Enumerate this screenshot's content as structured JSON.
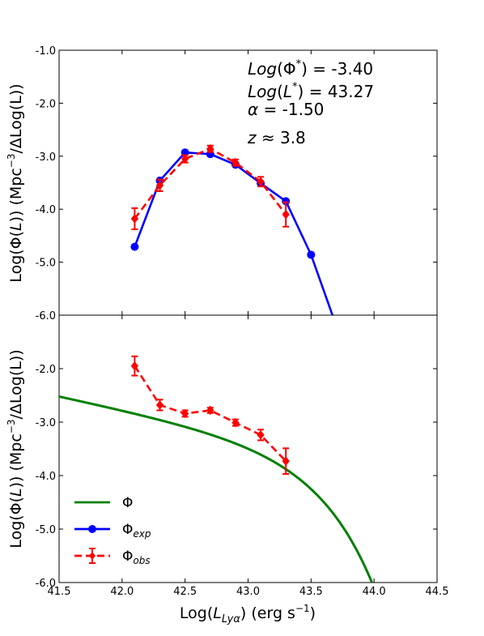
{
  "chart_data": [
    {
      "type": "line",
      "panel": "top",
      "xlim": [
        41.5,
        44.5
      ],
      "ylim": [
        -6.0,
        -1.0
      ],
      "xticks": [],
      "yticks": [
        "-1.0",
        "-2.0",
        "-3.0",
        "-4.0",
        "-5.0",
        "-6.0"
      ],
      "ylabel": "Log(Φ(L)) (Mpc⁻³/ΔLog(L))",
      "annotations": {
        "line1": "Log(Φ*) = -3.40",
        "line2": "Log(L*) = 43.27",
        "line3": "α = -1.50",
        "line4": "z ≈ 3.8"
      },
      "series": [
        {
          "name": "Φexp",
          "color": "#0000ff",
          "style": "solid-with-circles",
          "x": [
            42.1,
            42.3,
            42.5,
            42.7,
            42.9,
            43.1,
            43.3,
            43.5,
            43.67
          ],
          "y": [
            -4.71,
            -3.46,
            -2.93,
            -2.96,
            -3.16,
            -3.51,
            -3.85,
            -4.86,
            -6.0
          ],
          "markers": [
            true,
            true,
            true,
            true,
            true,
            true,
            true,
            true,
            false
          ]
        },
        {
          "name": "Φobs",
          "color": "#ff0000",
          "style": "dashed-with-diamonds",
          "x": [
            42.1,
            42.3,
            42.5,
            42.7,
            42.9,
            43.1,
            43.3
          ],
          "y": [
            -4.18,
            -3.55,
            -3.05,
            -2.86,
            -3.12,
            -3.48,
            -4.1
          ],
          "err": [
            0.2,
            0.11,
            0.07,
            0.06,
            0.06,
            0.09,
            0.23
          ]
        }
      ]
    },
    {
      "type": "line",
      "panel": "bottom",
      "xlim": [
        41.5,
        44.5
      ],
      "ylim": [
        -6.0,
        -1.0
      ],
      "xticks": [
        "41.5",
        "42.0",
        "42.5",
        "43.0",
        "43.5",
        "44.0",
        "44.5"
      ],
      "yticks": [
        "-2.0",
        "-3.0",
        "-4.0",
        "-5.0",
        "-6.0"
      ],
      "xlabel": "Log(LLyα) (erg s⁻¹)",
      "ylabel": "Log(Φ(L)) (Mpc⁻³/ΔLog(L))",
      "phi_star_log": -3.4,
      "l_star_log": 43.27,
      "alpha": -1.5,
      "series": [
        {
          "name": "Φ",
          "color": "#008000",
          "style": "solid",
          "function": "schechter"
        },
        {
          "name": "Φobs",
          "color": "#ff0000",
          "style": "dashed-with-diamonds",
          "x": [
            42.1,
            42.3,
            42.5,
            42.7,
            42.9,
            43.1,
            43.3
          ],
          "y": [
            -1.95,
            -2.68,
            -2.84,
            -2.78,
            -3.01,
            -3.24,
            -3.73
          ],
          "err": [
            0.18,
            0.1,
            0.06,
            0.05,
            0.06,
            0.1,
            0.24
          ]
        }
      ]
    }
  ],
  "legend": {
    "placement": "lower-left",
    "items": [
      {
        "label": "Φ",
        "color": "#008000",
        "marker": "none"
      },
      {
        "label": "Φ",
        "sub": "exp",
        "color": "#0000ff",
        "marker": "circle"
      },
      {
        "label": "Φ",
        "sub": "obs",
        "color": "#ff0000",
        "marker": "diamond"
      }
    ]
  }
}
